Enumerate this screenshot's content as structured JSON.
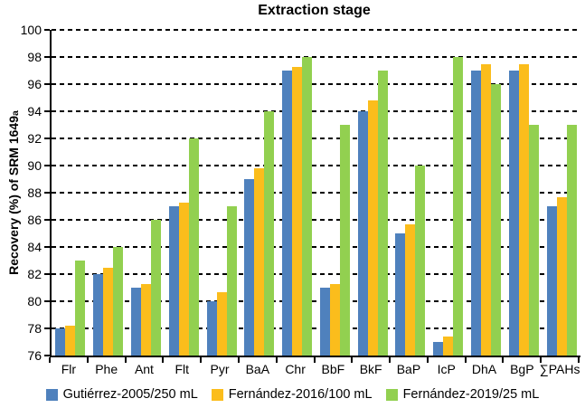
{
  "title": "Extraction stage",
  "y_axis_label": {
    "main": "Recovery (%) of SRM 1649",
    "sub": "a"
  },
  "chart_data": {
    "type": "bar",
    "title": "Extraction stage",
    "ylabel": "Recovery (%) of SRM 1649a",
    "ylim": [
      76,
      100
    ],
    "yticks": [
      76,
      78,
      80,
      82,
      84,
      86,
      88,
      90,
      92,
      94,
      96,
      98,
      100
    ],
    "grid": "horizontal-dashed",
    "legend_position": "bottom",
    "categories": [
      "Flr",
      "Phe",
      "Ant",
      "Flt",
      "Pyr",
      "BaA",
      "Chr",
      "BbF",
      "BkF",
      "BaP",
      "IcP",
      "DhA",
      "BgP",
      "∑PAHs"
    ],
    "series": [
      {
        "name": "Gutiérrez-2005/250 mL",
        "color": "#4f81bd",
        "values": [
          78,
          82,
          81,
          87,
          80,
          89,
          97,
          81,
          94,
          85,
          77,
          97,
          97,
          87
        ]
      },
      {
        "name": "Fernández-2016/100 mL",
        "color": "#fbbd1c",
        "values": [
          78.2,
          82.5,
          81.3,
          87.3,
          80.7,
          89.8,
          97.3,
          81.3,
          94.8,
          85.7,
          77.4,
          97.5,
          97.5,
          87.7
        ]
      },
      {
        "name": "Fernández-2019/25 mL",
        "color": "#92d050",
        "values": [
          83,
          84,
          86,
          92,
          87,
          94,
          98,
          93,
          97,
          90,
          98,
          96,
          93,
          93
        ]
      }
    ]
  }
}
